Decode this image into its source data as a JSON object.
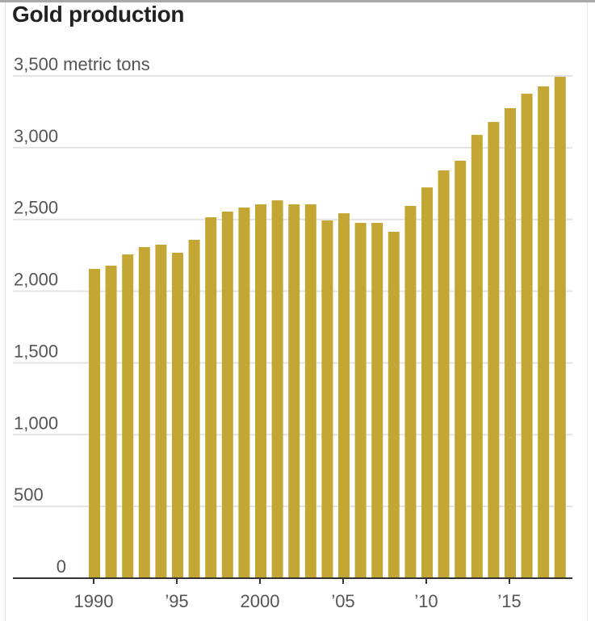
{
  "chart_data": {
    "type": "bar",
    "title": "Gold production",
    "ylabel_unit": "metric tons",
    "xlabel": "",
    "ylabel": "",
    "ylim": [
      0,
      3500
    ],
    "yticks": [
      0,
      500,
      1000,
      1500,
      2000,
      2500,
      3000,
      3500
    ],
    "ytick_labels": [
      "0",
      "500",
      "1,000",
      "1,500",
      "2,000",
      "2,500",
      "3,000",
      "3,500 metric tons"
    ],
    "xtick_years": [
      1990,
      1995,
      2000,
      2005,
      2010,
      2015
    ],
    "xtick_labels": [
      "1990",
      "’95",
      "2000",
      "’05",
      "’10",
      "’15"
    ],
    "grid": true,
    "categories": [
      1990,
      1991,
      1992,
      1993,
      1994,
      1995,
      1996,
      1997,
      1998,
      1999,
      2000,
      2001,
      2002,
      2003,
      2004,
      2005,
      2006,
      2007,
      2008,
      2009,
      2010,
      2011,
      2012,
      2013,
      2014,
      2015,
      2016,
      2017,
      2018
    ],
    "values": [
      2155,
      2178,
      2256,
      2307,
      2324,
      2268,
      2358,
      2515,
      2555,
      2583,
      2605,
      2633,
      2605,
      2605,
      2493,
      2543,
      2476,
      2476,
      2414,
      2594,
      2723,
      2842,
      2909,
      3089,
      3179,
      3275,
      3376,
      3427,
      3494
    ],
    "colors": {
      "bar": "#C4A634",
      "grid": "#e3e3e3",
      "axis": "#333333",
      "text": "#555555"
    }
  }
}
